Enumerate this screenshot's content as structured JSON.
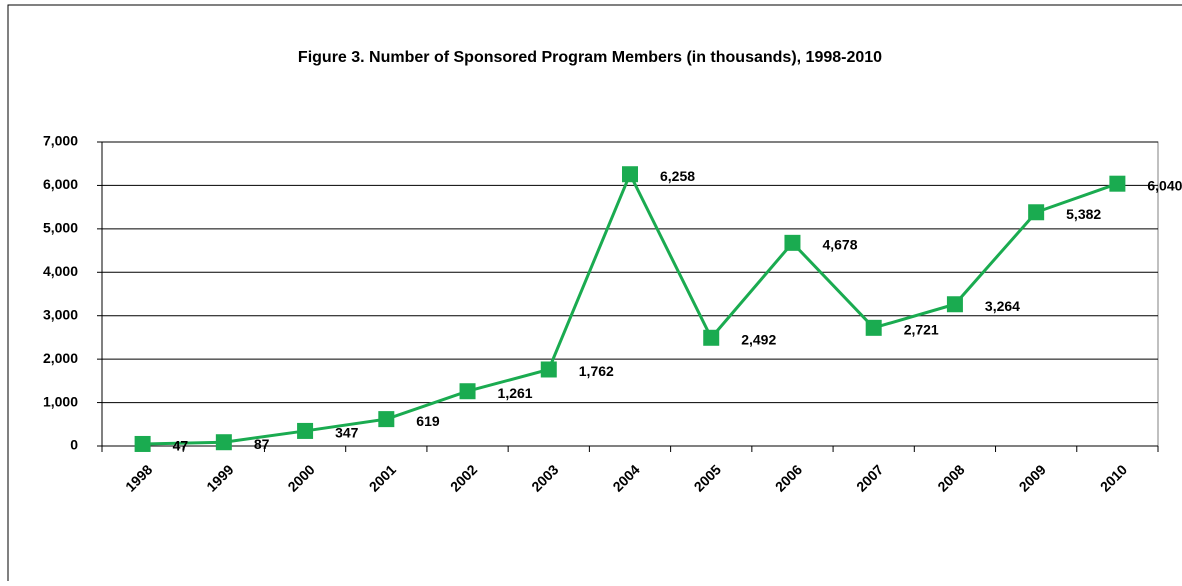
{
  "chart_data": {
    "type": "line",
    "title": "Figure 3. Number of Sponsored Program Members (in thousands), 1998-2010",
    "categories": [
      "1998",
      "1999",
      "2000",
      "2001",
      "2002",
      "2003",
      "2004",
      "2005",
      "2006",
      "2007",
      "2008",
      "2009",
      "2010"
    ],
    "series": [
      {
        "name": "Sponsored Program Members",
        "color": "#1aab50",
        "values": [
          47,
          87,
          347,
          619,
          1261,
          1762,
          6258,
          2492,
          4678,
          2721,
          3264,
          5382,
          6040
        ],
        "value_labels": [
          "47",
          "87",
          "347",
          "619",
          "1,261",
          "1,762",
          "6,258",
          "2,492",
          "4,678",
          "2,721",
          "3,264",
          "5,382",
          "6,040"
        ]
      }
    ],
    "ylim": [
      0,
      7000
    ],
    "yticks": [
      0,
      {
        "value": 1000,
        "label": "1,000"
      },
      {
        "value": 2000,
        "label": "2,000"
      },
      {
        "value": 3000,
        "label": "3,000"
      },
      {
        "value": 4000,
        "label": "4,000"
      },
      {
        "value": 5000,
        "label": "5,000"
      },
      {
        "value": 6000,
        "label": "6,000"
      },
      {
        "value": 7000,
        "label": "7,000"
      }
    ],
    "grid": true
  }
}
